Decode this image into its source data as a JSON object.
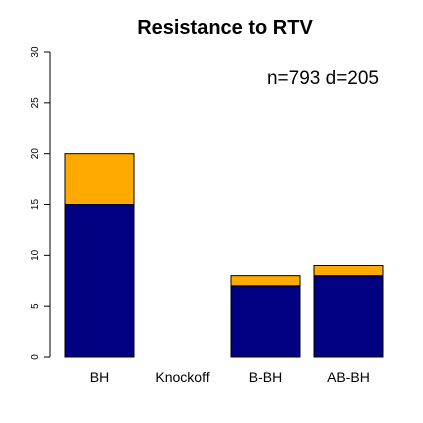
{
  "chart_data": {
    "type": "bar",
    "stacked": true,
    "title": "Resistance to RTV",
    "annotation": "n=793 d=205",
    "categories": [
      "BH",
      "Knockoff",
      "B-BH",
      "AB-BH"
    ],
    "series": [
      {
        "values": [
          15,
          0,
          7,
          8
        ],
        "color": "#000080"
      },
      {
        "values": [
          5,
          0,
          1,
          1
        ],
        "color": "#FFAA00"
      }
    ],
    "ylim": [
      0,
      30
    ],
    "yticks": [
      0,
      5,
      10,
      15,
      20,
      25,
      30
    ],
    "xlabel": "",
    "ylabel": "",
    "grid": false
  }
}
